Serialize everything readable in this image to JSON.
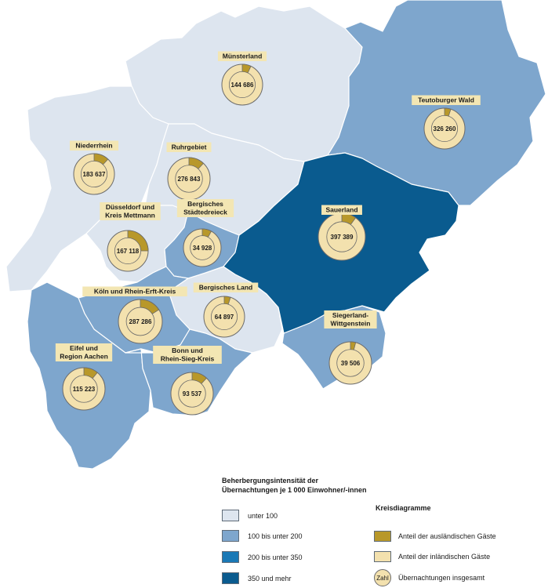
{
  "colors": {
    "unter_100": "#dde5ef",
    "bis_200": "#7ea6cd",
    "bis_350": "#1a79b6",
    "mehr_350": "#0a5b8f",
    "auslaendisch": "#b8982a",
    "inlaendisch": "#f3e1ae",
    "pie_outline": "#6b6b6b"
  },
  "regions": [
    {
      "name": "Münsterland",
      "total": "144 686",
      "foreign_share": 0.07
    },
    {
      "name": "Teutoburger Wald",
      "total": "326 260",
      "foreign_share": 0.05
    },
    {
      "name": "Niederrhein",
      "total": "183 637",
      "foreign_share": 0.12
    },
    {
      "name": "Ruhrgebiet",
      "total": "276 843",
      "foreign_share": 0.12
    },
    {
      "name": "Düsseldorf und Kreis Mettmann",
      "label_line1": "Düsseldorf und",
      "label_line2": "Kreis Mettmann",
      "total": "167 118",
      "foreign_share": 0.25
    },
    {
      "name": "Bergisches Städtedreieck",
      "label_line1": "Bergisches",
      "label_line2": "Städtedreieck",
      "total": "34 928",
      "foreign_share": 0.08
    },
    {
      "name": "Sauerland",
      "total": "397 389",
      "foreign_share": 0.1
    },
    {
      "name": "Köln und Rhein-Erft-Kreis",
      "total": "287 286",
      "foreign_share": 0.16
    },
    {
      "name": "Bergisches Land",
      "total": "64 897",
      "foreign_share": 0.05
    },
    {
      "name": "Siegerland-Wittgenstein",
      "label_line1": "Siegerland-",
      "label_line2": "Wittgenstein",
      "total": "39 506",
      "foreign_share": 0.04
    },
    {
      "name": "Eifel und Region Aachen",
      "label_line1": "Eifel und",
      "label_line2": "Region Aachen",
      "total": "115 223",
      "foreign_share": 0.11
    },
    {
      "name": "Bonn und Rhein-Sieg-Kreis",
      "label_line1": "Bonn und",
      "label_line2": "Rhein-Sieg-Kreis",
      "total": "93 537",
      "foreign_share": 0.12
    }
  ],
  "legend": {
    "title_line1": "Beherbergungsintensität der",
    "title_line2": "Übernachtungen je 1 000 Einwohner/-innen",
    "classes": [
      {
        "label": "unter 100"
      },
      {
        "label": "100 bis unter 200"
      },
      {
        "label": "200 bis unter 350"
      },
      {
        "label": "350 und mehr"
      }
    ],
    "pie_title": "Kreisdiagramme",
    "pie_items": [
      {
        "label": "Anteil der ausländischen Gäste"
      },
      {
        "label": "Anteil der inländischen Gäste"
      },
      {
        "label": "Übernachtungen insgesamt",
        "symbol_text": "Zahl"
      }
    ]
  }
}
